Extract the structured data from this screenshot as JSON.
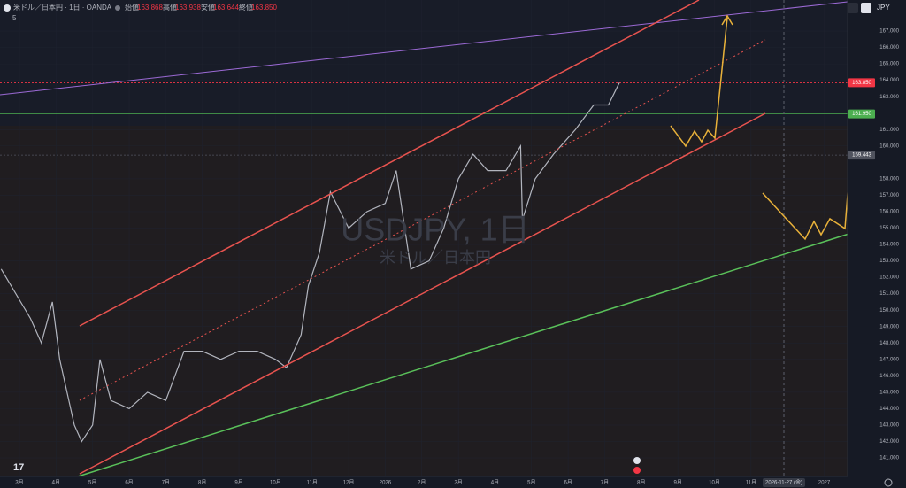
{
  "header": {
    "symbol": "米ドル／日本円 · 1日 · OANDA",
    "open_label": "始値",
    "open": "163.868",
    "high_label": "高値",
    "high": "163.938",
    "low_label": "安値",
    "low": "163.644",
    "close_label": "終値",
    "close": "163.850",
    "indicator_count": "5",
    "currency": "JPY"
  },
  "watermark": {
    "title": "USDJPY, 1日",
    "subtitle": "米ドル／日本円"
  },
  "crosshair_label": "2026-11-27 (金)",
  "chart_data": {
    "type": "line",
    "series": [
      {
        "color": "#b2b5be",
        "x": [
          -0.5,
          0.3,
          0.6,
          0.9,
          1.1,
          1.3,
          1.5,
          1.7,
          2.0,
          2.2,
          2.5,
          3.0,
          3.5,
          4.0,
          4.5,
          5.0,
          5.5,
          6.0,
          6.5,
          7.0,
          7.3,
          7.7,
          7.9,
          8.2,
          8.5,
          9.0,
          9.5,
          10.0,
          10.3,
          10.7,
          11.2,
          11.6,
          12.0,
          12.4,
          12.8,
          13.3,
          13.7,
          13.75,
          14.1,
          14.6,
          15.2,
          15.7,
          16.1,
          16.4
        ],
        "values": [
          152.5,
          149.5,
          148,
          150.5,
          147,
          145,
          143,
          142,
          143,
          147,
          144.5,
          144,
          145,
          144.5,
          147.5,
          147.5,
          147,
          147.5,
          147.5,
          147,
          146.5,
          148.5,
          151.5,
          153.5,
          157.2,
          155,
          156,
          156.5,
          158.5,
          152.5,
          153,
          155,
          158,
          159.5,
          158.5,
          158.5,
          160,
          155.5,
          158,
          159.5,
          161,
          162.5,
          162.5,
          163.85
        ]
      }
    ],
    "levels": [
      {
        "value": 163.85,
        "label": "163.850",
        "color": "#f23645"
      },
      {
        "value": 161.95,
        "label": "161.950",
        "color": "#4caf50"
      },
      {
        "value": 159.443,
        "label": "159.443",
        "color": "#50535e"
      }
    ],
    "xlim": [
      -0.532,
      22.64
    ],
    "ylim": [
      139.87,
      168.89
    ],
    "xticks": [
      {
        "value": 0,
        "label": "3月"
      },
      {
        "value": 1,
        "label": "4月"
      },
      {
        "value": 2,
        "label": "5月"
      },
      {
        "value": 3,
        "label": "6月"
      },
      {
        "value": 4,
        "label": "7月"
      },
      {
        "value": 5,
        "label": "8月"
      },
      {
        "value": 6,
        "label": "9月"
      },
      {
        "value": 7,
        "label": "10月"
      },
      {
        "value": 8,
        "label": "11月"
      },
      {
        "value": 9,
        "label": "12月"
      },
      {
        "value": 10,
        "label": "2026"
      },
      {
        "value": 11,
        "label": "2月"
      },
      {
        "value": 12,
        "label": "3月"
      },
      {
        "value": 13,
        "label": "4月"
      },
      {
        "value": 14,
        "label": "5月"
      },
      {
        "value": 15,
        "label": "6月"
      },
      {
        "value": 16,
        "label": "7月"
      },
      {
        "value": 17,
        "label": "8月"
      },
      {
        "value": 18,
        "label": "9月"
      },
      {
        "value": 19,
        "label": "10月"
      },
      {
        "value": 20,
        "label": "11月"
      },
      {
        "value": 22,
        "label": "2027"
      }
    ],
    "yticks": [
      {
        "value": 141,
        "label": "141.000"
      },
      {
        "value": 142,
        "label": "142.000"
      },
      {
        "value": 143,
        "label": "143.000"
      },
      {
        "value": 144,
        "label": "144.000"
      },
      {
        "value": 145,
        "label": "145.000"
      },
      {
        "value": 146,
        "label": "146.000"
      },
      {
        "value": 147,
        "label": "147.000"
      },
      {
        "value": 148,
        "label": "148.000"
      },
      {
        "value": 149,
        "label": "149.000"
      },
      {
        "value": 150,
        "label": "150.000"
      },
      {
        "value": 151,
        "label": "151.000"
      },
      {
        "value": 152,
        "label": "152.000"
      },
      {
        "value": 153,
        "label": "153.000"
      },
      {
        "value": 154,
        "label": "154.000"
      },
      {
        "value": 155,
        "label": "155.000"
      },
      {
        "value": 156,
        "label": "156.000"
      },
      {
        "value": 157,
        "label": "157.000"
      },
      {
        "value": 158,
        "label": "158.000"
      },
      {
        "value": 160,
        "label": "160.000"
      },
      {
        "value": 161,
        "label": "161.000"
      },
      {
        "value": 163,
        "label": "163.000"
      },
      {
        "value": 164,
        "label": "164.000"
      },
      {
        "value": 165,
        "label": "165.000"
      },
      {
        "value": 166,
        "label": "166.000"
      },
      {
        "value": 167,
        "label": "167.000"
      }
    ]
  }
}
